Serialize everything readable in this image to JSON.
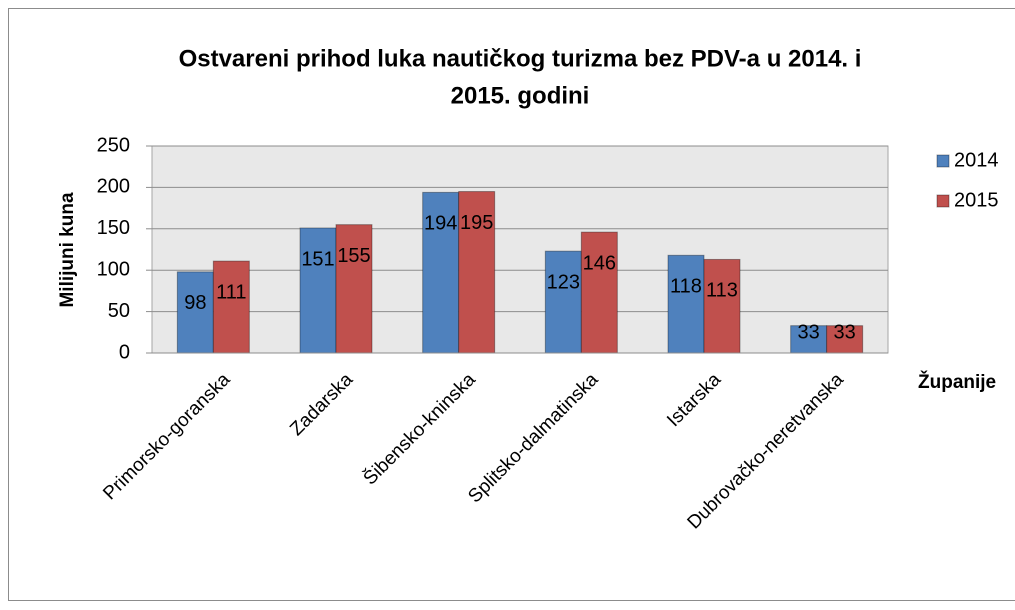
{
  "chart_data": {
    "type": "bar",
    "title": "Ostvareni prihod luka nautičkog turizma bez PDV-a u 2014. i",
    "title_line2": "2015. godini",
    "y_label": "Milijuni kuna",
    "x_label": "Županije",
    "categories": [
      "Primorsko-goranska",
      "Zadarska",
      "Šibensko-kninska",
      "Splitsko-dalmatinska",
      "Istarska",
      "Dubrovačko-neretvanska"
    ],
    "series": [
      {
        "name": "2014",
        "color": "#4f81bd",
        "values": [
          98,
          151,
          194,
          123,
          118,
          33
        ]
      },
      {
        "name": "2015",
        "color": "#c0504d",
        "values": [
          111,
          155,
          195,
          146,
          113,
          33
        ]
      }
    ],
    "ylim": [
      0,
      250
    ],
    "yticks": [
      0,
      50,
      100,
      150,
      200,
      250
    ],
    "grid": true,
    "legend": "right"
  }
}
